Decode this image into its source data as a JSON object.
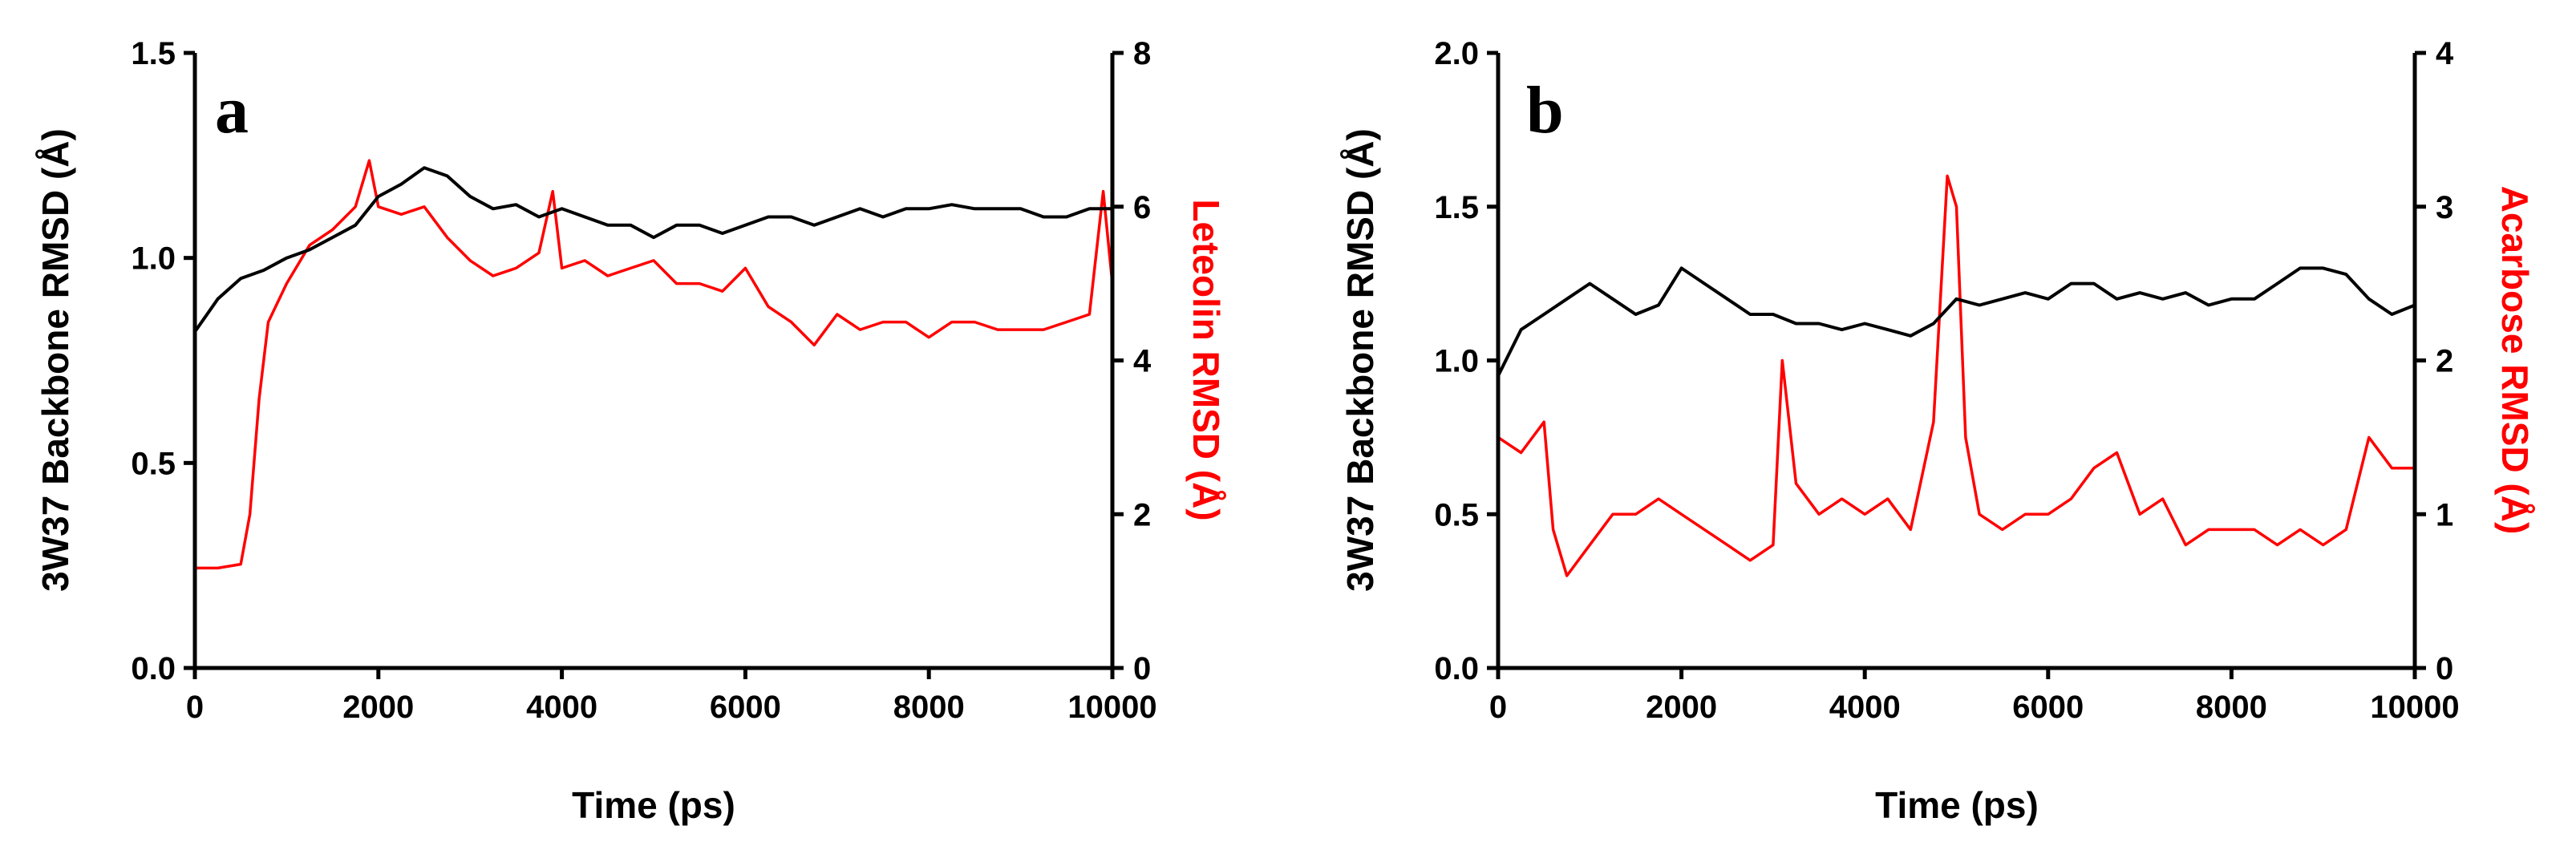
{
  "chart_data": [
    {
      "type": "line",
      "panel_label": "a",
      "xlabel": "Time (ps)",
      "ylabel_left": "3W37 Backbone RMSD (Å)",
      "ylabel_right": "Leteolin RMSD (Å)",
      "xlim": [
        0,
        10000
      ],
      "ylim_left": [
        0,
        1.5
      ],
      "ylim_right": [
        0,
        8
      ],
      "x_ticks": [
        "0",
        "2000",
        "4000",
        "6000",
        "8000",
        "10000"
      ],
      "y_left_ticks": [
        "0.0",
        "0.5",
        "1.0",
        "1.5"
      ],
      "y_right_ticks": [
        "0",
        "2",
        "4",
        "6",
        "8"
      ],
      "colors": {
        "left": "#000000",
        "right": "#ff0000"
      },
      "series": [
        {
          "name": "3W37 Backbone RMSD",
          "axis": "left",
          "color": "#000000",
          "x": [
            0,
            250,
            500,
            750,
            1000,
            1250,
            1500,
            1750,
            2000,
            2250,
            2500,
            2750,
            3000,
            3250,
            3500,
            3750,
            4000,
            4250,
            4500,
            4750,
            5000,
            5250,
            5500,
            5750,
            6000,
            6250,
            6500,
            6750,
            7000,
            7250,
            7500,
            7750,
            8000,
            8250,
            8500,
            8750,
            9000,
            9250,
            9500,
            9750,
            10000
          ],
          "values": [
            0.82,
            0.9,
            0.95,
            0.97,
            1.0,
            1.02,
            1.05,
            1.08,
            1.15,
            1.18,
            1.22,
            1.2,
            1.15,
            1.12,
            1.13,
            1.1,
            1.12,
            1.1,
            1.08,
            1.08,
            1.05,
            1.08,
            1.08,
            1.06,
            1.08,
            1.1,
            1.1,
            1.08,
            1.1,
            1.12,
            1.1,
            1.12,
            1.12,
            1.13,
            1.12,
            1.12,
            1.12,
            1.1,
            1.1,
            1.12,
            1.12
          ]
        },
        {
          "name": "Leteolin RMSD",
          "axis": "right",
          "color": "#ff0000",
          "x": [
            0,
            250,
            500,
            600,
            700,
            800,
            1000,
            1250,
            1500,
            1750,
            1900,
            2000,
            2250,
            2500,
            2750,
            3000,
            3250,
            3500,
            3750,
            3900,
            4000,
            4250,
            4500,
            4750,
            5000,
            5250,
            5500,
            5750,
            6000,
            6250,
            6500,
            6750,
            7000,
            7250,
            7500,
            7750,
            8000,
            8250,
            8500,
            8750,
            9000,
            9250,
            9500,
            9750,
            9900,
            10000
          ],
          "values": [
            1.3,
            1.3,
            1.35,
            2.0,
            3.5,
            4.5,
            5.0,
            5.5,
            5.7,
            6.0,
            6.6,
            6.0,
            5.9,
            6.0,
            5.6,
            5.3,
            5.1,
            5.2,
            5.4,
            6.2,
            5.2,
            5.3,
            5.1,
            5.2,
            5.3,
            5.0,
            5.0,
            4.9,
            5.2,
            4.7,
            4.5,
            4.2,
            4.6,
            4.4,
            4.5,
            4.5,
            4.3,
            4.5,
            4.5,
            4.4,
            4.4,
            4.4,
            4.5,
            4.6,
            6.2,
            5.0
          ]
        }
      ]
    },
    {
      "type": "line",
      "panel_label": "b",
      "xlabel": "Time (ps)",
      "ylabel_left": "3W37 Backbone RMSD (Å)",
      "ylabel_right": "Acarbose RMSD (Å)",
      "xlim": [
        0,
        10000
      ],
      "ylim_left": [
        0,
        2.0
      ],
      "ylim_right": [
        0,
        4
      ],
      "x_ticks": [
        "0",
        "2000",
        "4000",
        "6000",
        "8000",
        "10000"
      ],
      "y_left_ticks": [
        "0.0",
        "0.5",
        "1.0",
        "1.5",
        "2.0"
      ],
      "y_right_ticks": [
        "0",
        "1",
        "2",
        "3",
        "4"
      ],
      "colors": {
        "left": "#000000",
        "right": "#ff0000"
      },
      "series": [
        {
          "name": "3W37 Backbone RMSD",
          "axis": "left",
          "color": "#000000",
          "x": [
            0,
            250,
            500,
            750,
            1000,
            1250,
            1500,
            1750,
            2000,
            2250,
            2500,
            2750,
            3000,
            3250,
            3500,
            3750,
            4000,
            4250,
            4500,
            4750,
            5000,
            5250,
            5500,
            5750,
            6000,
            6250,
            6500,
            6750,
            7000,
            7250,
            7500,
            7750,
            8000,
            8250,
            8500,
            8750,
            9000,
            9250,
            9500,
            9750,
            10000
          ],
          "values": [
            0.95,
            1.1,
            1.15,
            1.2,
            1.25,
            1.2,
            1.15,
            1.18,
            1.3,
            1.25,
            1.2,
            1.15,
            1.15,
            1.12,
            1.12,
            1.1,
            1.12,
            1.1,
            1.08,
            1.12,
            1.2,
            1.18,
            1.2,
            1.22,
            1.2,
            1.25,
            1.25,
            1.2,
            1.22,
            1.2,
            1.22,
            1.18,
            1.2,
            1.2,
            1.25,
            1.3,
            1.3,
            1.28,
            1.2,
            1.15,
            1.18
          ]
        },
        {
          "name": "Acarbose RMSD",
          "axis": "right",
          "color": "#ff0000",
          "x": [
            0,
            250,
            500,
            600,
            750,
            1000,
            1250,
            1500,
            1750,
            2000,
            2250,
            2500,
            2750,
            3000,
            3100,
            3250,
            3500,
            3750,
            4000,
            4250,
            4500,
            4750,
            4900,
            5000,
            5100,
            5250,
            5500,
            5750,
            6000,
            6250,
            6500,
            6750,
            7000,
            7250,
            7500,
            7750,
            8000,
            8250,
            8500,
            8750,
            9000,
            9250,
            9500,
            9750,
            10000
          ],
          "values": [
            1.5,
            1.4,
            1.6,
            0.9,
            0.6,
            0.8,
            1.0,
            1.0,
            1.1,
            1.0,
            0.9,
            0.8,
            0.7,
            0.8,
            2.0,
            1.2,
            1.0,
            1.1,
            1.0,
            1.1,
            0.9,
            1.6,
            3.2,
            3.0,
            1.5,
            1.0,
            0.9,
            1.0,
            1.0,
            1.1,
            1.3,
            1.4,
            1.0,
            1.1,
            0.8,
            0.9,
            0.9,
            0.9,
            0.8,
            0.9,
            0.8,
            0.9,
            1.5,
            1.3,
            1.3
          ]
        }
      ]
    }
  ]
}
